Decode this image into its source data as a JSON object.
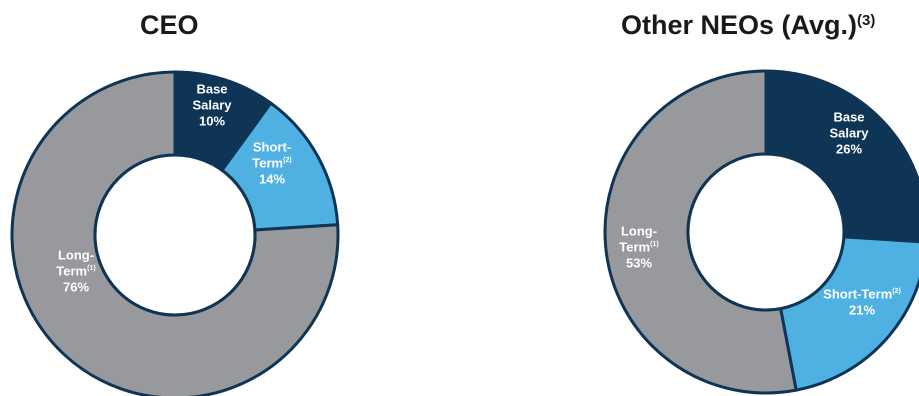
{
  "chart_data": [
    {
      "type": "pie",
      "title": "CEO",
      "title_sup": "",
      "slices": [
        {
          "label": "Base Salary",
          "label_lines": [
            "Base",
            "Salary"
          ],
          "sup": "",
          "value": 10,
          "value_text": "10%",
          "color": "#0f3556",
          "text_color": "#ffffff"
        },
        {
          "label": "Short-Term",
          "label_lines": [
            "Short-",
            "Term"
          ],
          "sup": "(2)",
          "value": 14,
          "value_text": "14%",
          "color": "#4fb0e2",
          "text_color": "#ffffff"
        },
        {
          "label": "Long-Term",
          "label_lines": [
            "Long-",
            "Term"
          ],
          "sup": "(1)",
          "value": 76,
          "value_text": "76%",
          "color": "#97999c",
          "text_color": "#ffffff"
        }
      ]
    },
    {
      "type": "pie",
      "title": "Other NEOs (Avg.)",
      "title_sup": "(3)",
      "slices": [
        {
          "label": "Base Salary",
          "label_lines": [
            "Base",
            "Salary"
          ],
          "sup": "",
          "value": 26,
          "value_text": "26%",
          "color": "#0f3556",
          "text_color": "#ffffff"
        },
        {
          "label": "Short-Term",
          "label_lines": [
            "Short-Term"
          ],
          "sup": "(2)",
          "value": 21,
          "value_text": "21%",
          "color": "#4fb0e2",
          "text_color": "#ffffff"
        },
        {
          "label": "Long-Term",
          "label_lines": [
            "Long-",
            "Term"
          ],
          "sup": "(1)",
          "value": 53,
          "value_text": "53%",
          "color": "#97999c",
          "text_color": "#ffffff"
        }
      ]
    }
  ],
  "colors": {
    "outline": "#0f3556",
    "background": "#ffffff"
  }
}
